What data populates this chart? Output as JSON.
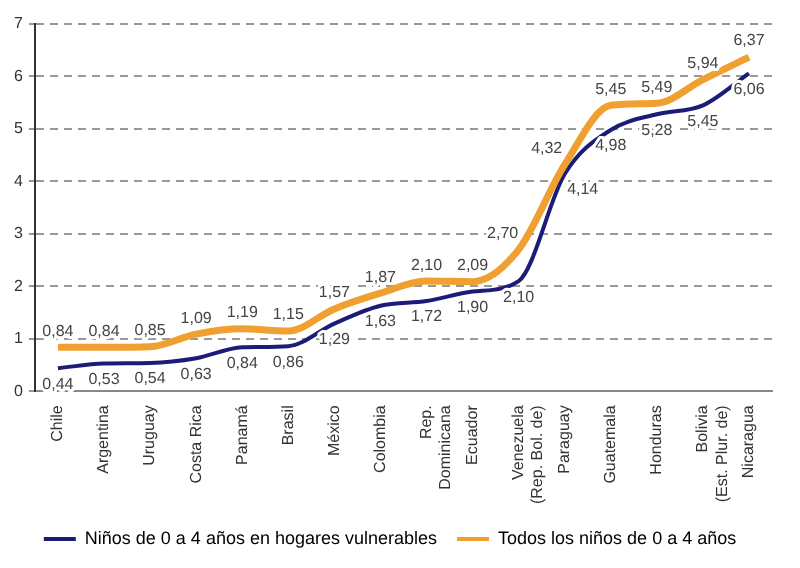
{
  "chart_data": {
    "type": "line",
    "categories": [
      "Chile",
      "Argentina",
      "Uruguay",
      "Costa Rica",
      "Panamá",
      "Brasil",
      "México",
      "Colombia",
      "Rep. Dominicana",
      "Ecuador",
      "Venezuela (Rep. Bol. de)",
      "Paraguay",
      "Guatemala",
      "Honduras",
      "Bolivia (Est. Plur. de)",
      "Nicaragua"
    ],
    "series": [
      {
        "name": "Niños de 0 a 4 años en hogares vulnerables",
        "color": "#1c1c78",
        "values": [
          0.44,
          0.53,
          0.54,
          0.63,
          0.84,
          0.86,
          1.29,
          1.63,
          1.72,
          1.9,
          2.1,
          4.14,
          4.98,
          5.28,
          5.45,
          6.06
        ],
        "value_labels": [
          "0,44",
          "0,53",
          "0,54",
          "0,63",
          "0,84",
          "0,86",
          "1,29",
          "1,63",
          "1,72",
          "1,90",
          "2,10",
          "4,14",
          "4,98",
          "5,28",
          "5,45",
          "6,06"
        ]
      },
      {
        "name": "Todos los niños de 0 a 4 años",
        "color": "#f0a030",
        "values": [
          0.84,
          0.84,
          0.85,
          1.09,
          1.19,
          1.15,
          1.57,
          1.87,
          2.1,
          2.09,
          2.7,
          4.32,
          5.45,
          5.49,
          5.94,
          6.37
        ],
        "value_labels": [
          "0,84",
          "0,84",
          "0,85",
          "1,09",
          "1,19",
          "1,15",
          "1,57",
          "1,87",
          "2,10",
          "2,09",
          "2,70",
          "4,32",
          "5,45",
          "5,49",
          "5,94",
          "6,37"
        ]
      }
    ],
    "ylim": [
      0,
      7
    ],
    "yticks": [
      0,
      1,
      2,
      3,
      4,
      5,
      6,
      7
    ],
    "grid": "y",
    "legend": "bottom",
    "marker": "none",
    "line_style": "solid"
  }
}
